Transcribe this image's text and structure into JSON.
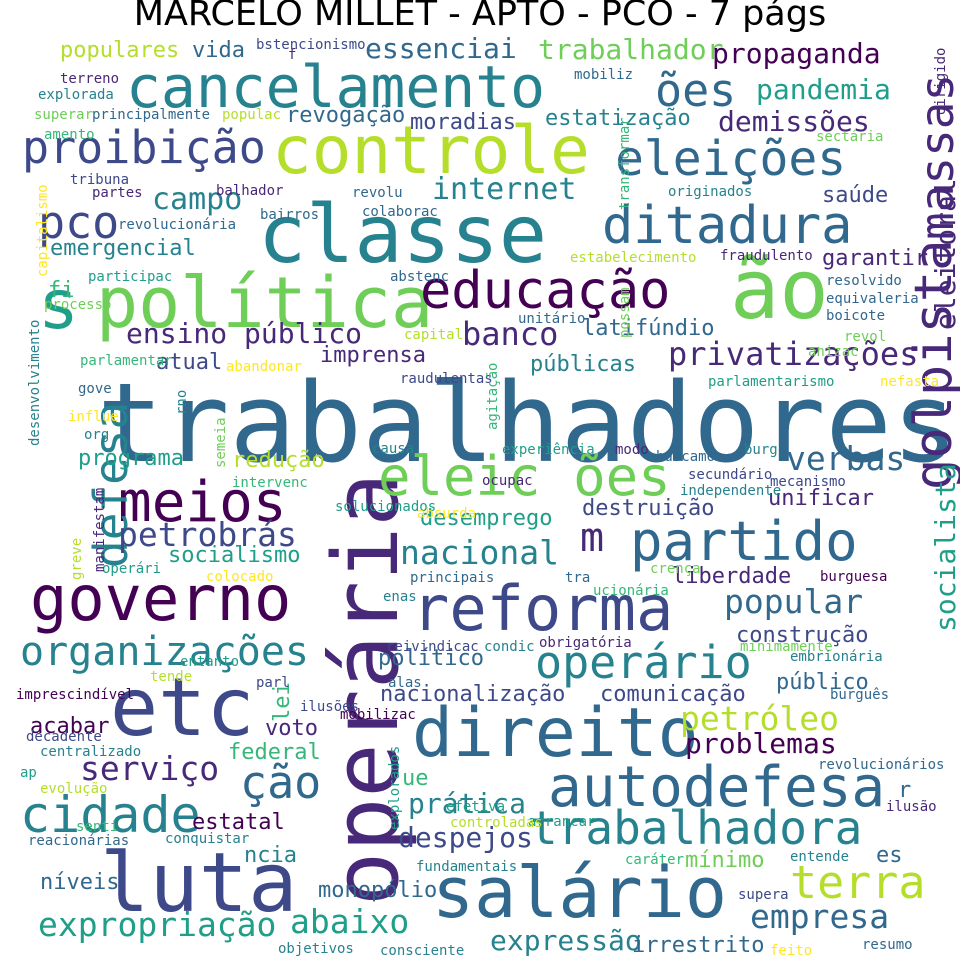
{
  "title": "MARCELO MILLET - APTO - PCO - 7 págs",
  "palette": {
    "c0": "#440154",
    "c1": "#482878",
    "c2": "#3e4989",
    "c3": "#31688e",
    "c4": "#26828e",
    "c5": "#1f9e89",
    "c6": "#35b779",
    "c7": "#6ece58",
    "c8": "#b5de2b",
    "c9": "#fde725"
  },
  "words": [
    "trabalhadores",
    "classe",
    "operária",
    "reforma",
    "governo",
    "luta",
    "salário",
    "etc",
    "direito",
    "controle",
    "cancelamento",
    "política",
    "ão",
    "s",
    "eleições",
    "ditadura",
    "educação",
    "partido",
    "m",
    "eleic ões",
    "golpista",
    "autodefesa",
    "meios",
    "defesa",
    "massas",
    "proibição",
    "pco",
    "trabalhadora",
    "cidade",
    "terra",
    "operário",
    "organizações",
    "expropriação",
    "abaixo",
    "internet",
    "campo",
    "banco",
    "privatizações",
    "ensino público",
    "verbas",
    "petrobrás",
    "nacional",
    "popular",
    "serviço",
    "ção",
    "ões",
    "empresa",
    "petróleo",
    "despejos",
    "prática",
    "problemas",
    "expressão",
    "eleitoral",
    "socialista",
    "essenciai",
    "trabalhador",
    "propaganda",
    "pandemia",
    "demissões",
    "revogação",
    "moradias",
    "estatização",
    "emergencial",
    "saúde",
    "garantir",
    "latifúndio",
    "atual",
    "imprensa",
    "públicas",
    "programa",
    "redução",
    "socialismo",
    "desemprego",
    "destruição",
    "unificar",
    "liberdade",
    "construção",
    "político",
    "lei",
    "voto",
    "nacionalização",
    "comunicação",
    "público",
    "federal",
    "acabar",
    "estatal",
    "ncia",
    "níveis",
    "monopólio",
    "mínimo",
    "irrestrito",
    "es",
    "ue",
    "r",
    "populares",
    "vida",
    "fi",
    "principalmente",
    "tribuna",
    "revolucionária",
    "secundário",
    "independente",
    "mecanismo",
    "buscamos",
    "ocupac",
    "solucionados",
    "experiência",
    "burg",
    "modo",
    "causa",
    "principais",
    "tra",
    "crença",
    "burguesa",
    "minimamente",
    "reivindicac",
    "condic",
    "obrigatória",
    "embrionária",
    "burguês",
    "mobilizac",
    "decadente",
    "centralizado",
    "imprescindível",
    "alas",
    "parl",
    "ilusões",
    "senti",
    "entanto",
    "tende",
    "efetiva",
    "arrancar",
    "revolucionários",
    "ilusão",
    "entende",
    "caráter",
    "fundamentais",
    "controladas",
    "explorados",
    "supera",
    "resumo",
    "feito",
    "consciente",
    "objetivos",
    "reacionárias",
    "conquistar",
    "evolução",
    "ap",
    "colocado",
    "operári",
    "greve",
    "manifestam",
    "org",
    "gove",
    "rno",
    "influe",
    "desenvolvimento",
    "parlamentar",
    "abandonar",
    "raudulentas",
    "parlamentarismo",
    "nefasta",
    "anizac",
    "revol",
    "boicote",
    "equivaleria",
    "resolvido",
    "fraudulento",
    "abstenc",
    "estabelecimento",
    "participac",
    "processo",
    "capital",
    "unitário",
    "possam",
    "capitalismo",
    "bairros",
    "colaborac",
    "balhador",
    "revolu",
    "originados",
    "partes",
    "amento",
    "superar",
    "explorada",
    "terreno",
    "bstencionismo",
    "f",
    "mobiliz",
    "populac",
    "sectária",
    "transformar",
    "dirigido",
    "agitação",
    "semeia",
    "intervenc",
    "absurda",
    "enas",
    "ucionária"
  ]
}
